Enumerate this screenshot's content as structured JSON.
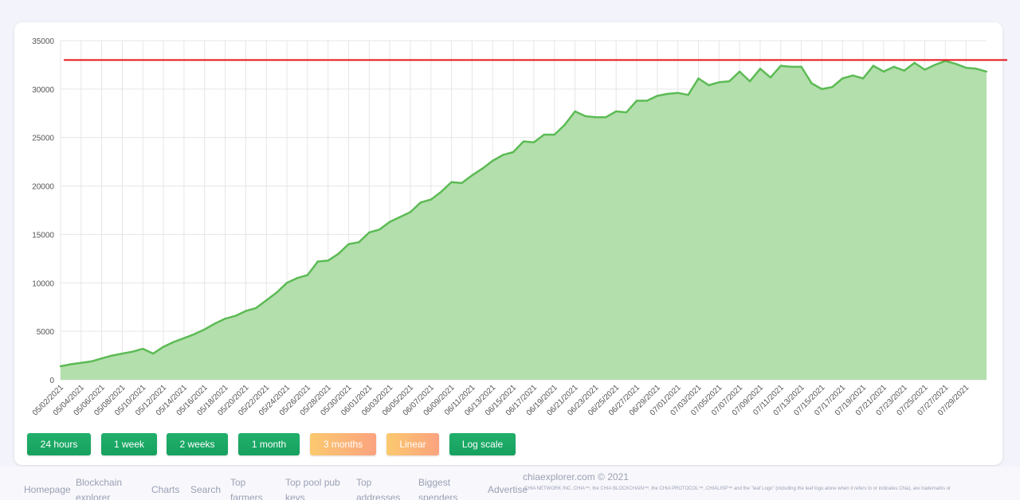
{
  "chart_data": {
    "type": "area",
    "y_ticks": [
      0,
      5000,
      10000,
      15000,
      20000,
      25000,
      30000,
      35000
    ],
    "ylim": [
      0,
      35000
    ],
    "x_tick_labels": [
      "05/02/2021",
      "05/04/2021",
      "05/06/2021",
      "05/08/2021",
      "05/10/2021",
      "05/12/2021",
      "05/14/2021",
      "05/16/2021",
      "05/18/2021",
      "05/20/2021",
      "05/22/2021",
      "05/24/2021",
      "05/26/2021",
      "05/28/2021",
      "05/30/2021",
      "06/01/2021",
      "06/03/2021",
      "06/05/2021",
      "06/07/2021",
      "06/09/2021",
      "06/11/2021",
      "06/13/2021",
      "06/15/2021",
      "06/17/2021",
      "06/19/2021",
      "06/21/2021",
      "06/23/2021",
      "06/25/2021",
      "06/27/2021",
      "06/29/2021",
      "07/01/2021",
      "07/03/2021",
      "07/05/2021",
      "07/07/2021",
      "07/09/2021",
      "07/11/2021",
      "07/13/2021",
      "07/15/2021",
      "07/17/2021",
      "07/19/2021",
      "07/21/2021",
      "07/23/2021",
      "07/25/2021",
      "07/27/2021",
      "07/29/2021"
    ],
    "series": [
      {
        "color": "#5cbb55",
        "fill": "#b3dfac",
        "points": [
          [
            "05/02/2021",
            1400
          ],
          [
            "05/03/2021",
            1600
          ],
          [
            "05/04/2021",
            1750
          ],
          [
            "05/05/2021",
            1900
          ],
          [
            "05/06/2021",
            2200
          ],
          [
            "05/07/2021",
            2500
          ],
          [
            "05/08/2021",
            2700
          ],
          [
            "05/09/2021",
            2900
          ],
          [
            "05/10/2021",
            3200
          ],
          [
            "05/11/2021",
            2700
          ],
          [
            "05/12/2021",
            3400
          ],
          [
            "05/13/2021",
            3900
          ],
          [
            "05/14/2021",
            4300
          ],
          [
            "05/15/2021",
            4700
          ],
          [
            "05/16/2021",
            5200
          ],
          [
            "05/17/2021",
            5800
          ],
          [
            "05/18/2021",
            6300
          ],
          [
            "05/19/2021",
            6600
          ],
          [
            "05/20/2021",
            7100
          ],
          [
            "05/21/2021",
            7400
          ],
          [
            "05/22/2021",
            8200
          ],
          [
            "05/23/2021",
            9000
          ],
          [
            "05/24/2021",
            10000
          ],
          [
            "05/25/2021",
            10500
          ],
          [
            "05/26/2021",
            10800
          ],
          [
            "05/27/2021",
            12200
          ],
          [
            "05/28/2021",
            12300
          ],
          [
            "05/29/2021",
            13000
          ],
          [
            "05/30/2021",
            14000
          ],
          [
            "05/31/2021",
            14200
          ],
          [
            "06/01/2021",
            15200
          ],
          [
            "06/02/2021",
            15500
          ],
          [
            "06/03/2021",
            16300
          ],
          [
            "06/04/2021",
            16800
          ],
          [
            "06/05/2021",
            17300
          ],
          [
            "06/06/2021",
            18300
          ],
          [
            "06/07/2021",
            18600
          ],
          [
            "06/08/2021",
            19400
          ],
          [
            "06/09/2021",
            20400
          ],
          [
            "06/10/2021",
            20300
          ],
          [
            "06/11/2021",
            21100
          ],
          [
            "06/12/2021",
            21800
          ],
          [
            "06/13/2021",
            22600
          ],
          [
            "06/14/2021",
            23200
          ],
          [
            "06/15/2021",
            23500
          ],
          [
            "06/16/2021",
            24600
          ],
          [
            "06/17/2021",
            24500
          ],
          [
            "06/18/2021",
            25300
          ],
          [
            "06/19/2021",
            25300
          ],
          [
            "06/20/2021",
            26300
          ],
          [
            "06/21/2021",
            27700
          ],
          [
            "06/22/2021",
            27200
          ],
          [
            "06/23/2021",
            27100
          ],
          [
            "06/24/2021",
            27100
          ],
          [
            "06/25/2021",
            27700
          ],
          [
            "06/26/2021",
            27600
          ],
          [
            "06/27/2021",
            28800
          ],
          [
            "06/28/2021",
            28800
          ],
          [
            "06/29/2021",
            29300
          ],
          [
            "06/30/2021",
            29500
          ],
          [
            "07/01/2021",
            29600
          ],
          [
            "07/02/2021",
            29400
          ],
          [
            "07/03/2021",
            31100
          ],
          [
            "07/04/2021",
            30400
          ],
          [
            "07/05/2021",
            30700
          ],
          [
            "07/06/2021",
            30800
          ],
          [
            "07/07/2021",
            31800
          ],
          [
            "07/08/2021",
            30800
          ],
          [
            "07/09/2021",
            32100
          ],
          [
            "07/10/2021",
            31200
          ],
          [
            "07/11/2021",
            32400
          ],
          [
            "07/12/2021",
            32300
          ],
          [
            "07/13/2021",
            32300
          ],
          [
            "07/14/2021",
            30600
          ],
          [
            "07/15/2021",
            30000
          ],
          [
            "07/16/2021",
            30200
          ],
          [
            "07/17/2021",
            31100
          ],
          [
            "07/18/2021",
            31400
          ],
          [
            "07/19/2021",
            31100
          ],
          [
            "07/20/2021",
            32400
          ],
          [
            "07/21/2021",
            31800
          ],
          [
            "07/22/2021",
            32300
          ],
          [
            "07/23/2021",
            31900
          ],
          [
            "07/24/2021",
            32700
          ],
          [
            "07/25/2021",
            32000
          ],
          [
            "07/26/2021",
            32500
          ],
          [
            "07/27/2021",
            32900
          ],
          [
            "07/28/2021",
            32600
          ],
          [
            "07/29/2021",
            32200
          ],
          [
            "07/30/2021",
            32100
          ],
          [
            "07/31/2021",
            31800
          ]
        ]
      }
    ],
    "reference_line": {
      "value": 33000,
      "color": "#e8141a"
    },
    "grid": true,
    "legend": "none"
  },
  "buttons": [
    {
      "label": "24 hours",
      "style": "green"
    },
    {
      "label": "1 week",
      "style": "green"
    },
    {
      "label": "2 weeks",
      "style": "green"
    },
    {
      "label": "1 month",
      "style": "green"
    },
    {
      "label": "3 months",
      "style": "orange"
    },
    {
      "label": "Linear",
      "style": "orange"
    },
    {
      "label": "Log scale",
      "style": "green"
    }
  ],
  "footer": {
    "copyright": "chiaexplorer.com © 2021",
    "trademark": "CHIA NETWORK INC, CHIA™, the CHIA BLOCKCHAIN™, the CHIA PROTOCOL™, CHIALISP™ and the \"leaf Logo\" (including the leaf logo alone when it refers to or indicates Chia), are trademarks or",
    "nav": [
      "Homepage",
      "Blockchain explorer",
      "Charts",
      "Search",
      "Top farmers",
      "Top pool pub keys",
      "Top addresses",
      "Biggest spenders",
      "Advertise"
    ]
  }
}
